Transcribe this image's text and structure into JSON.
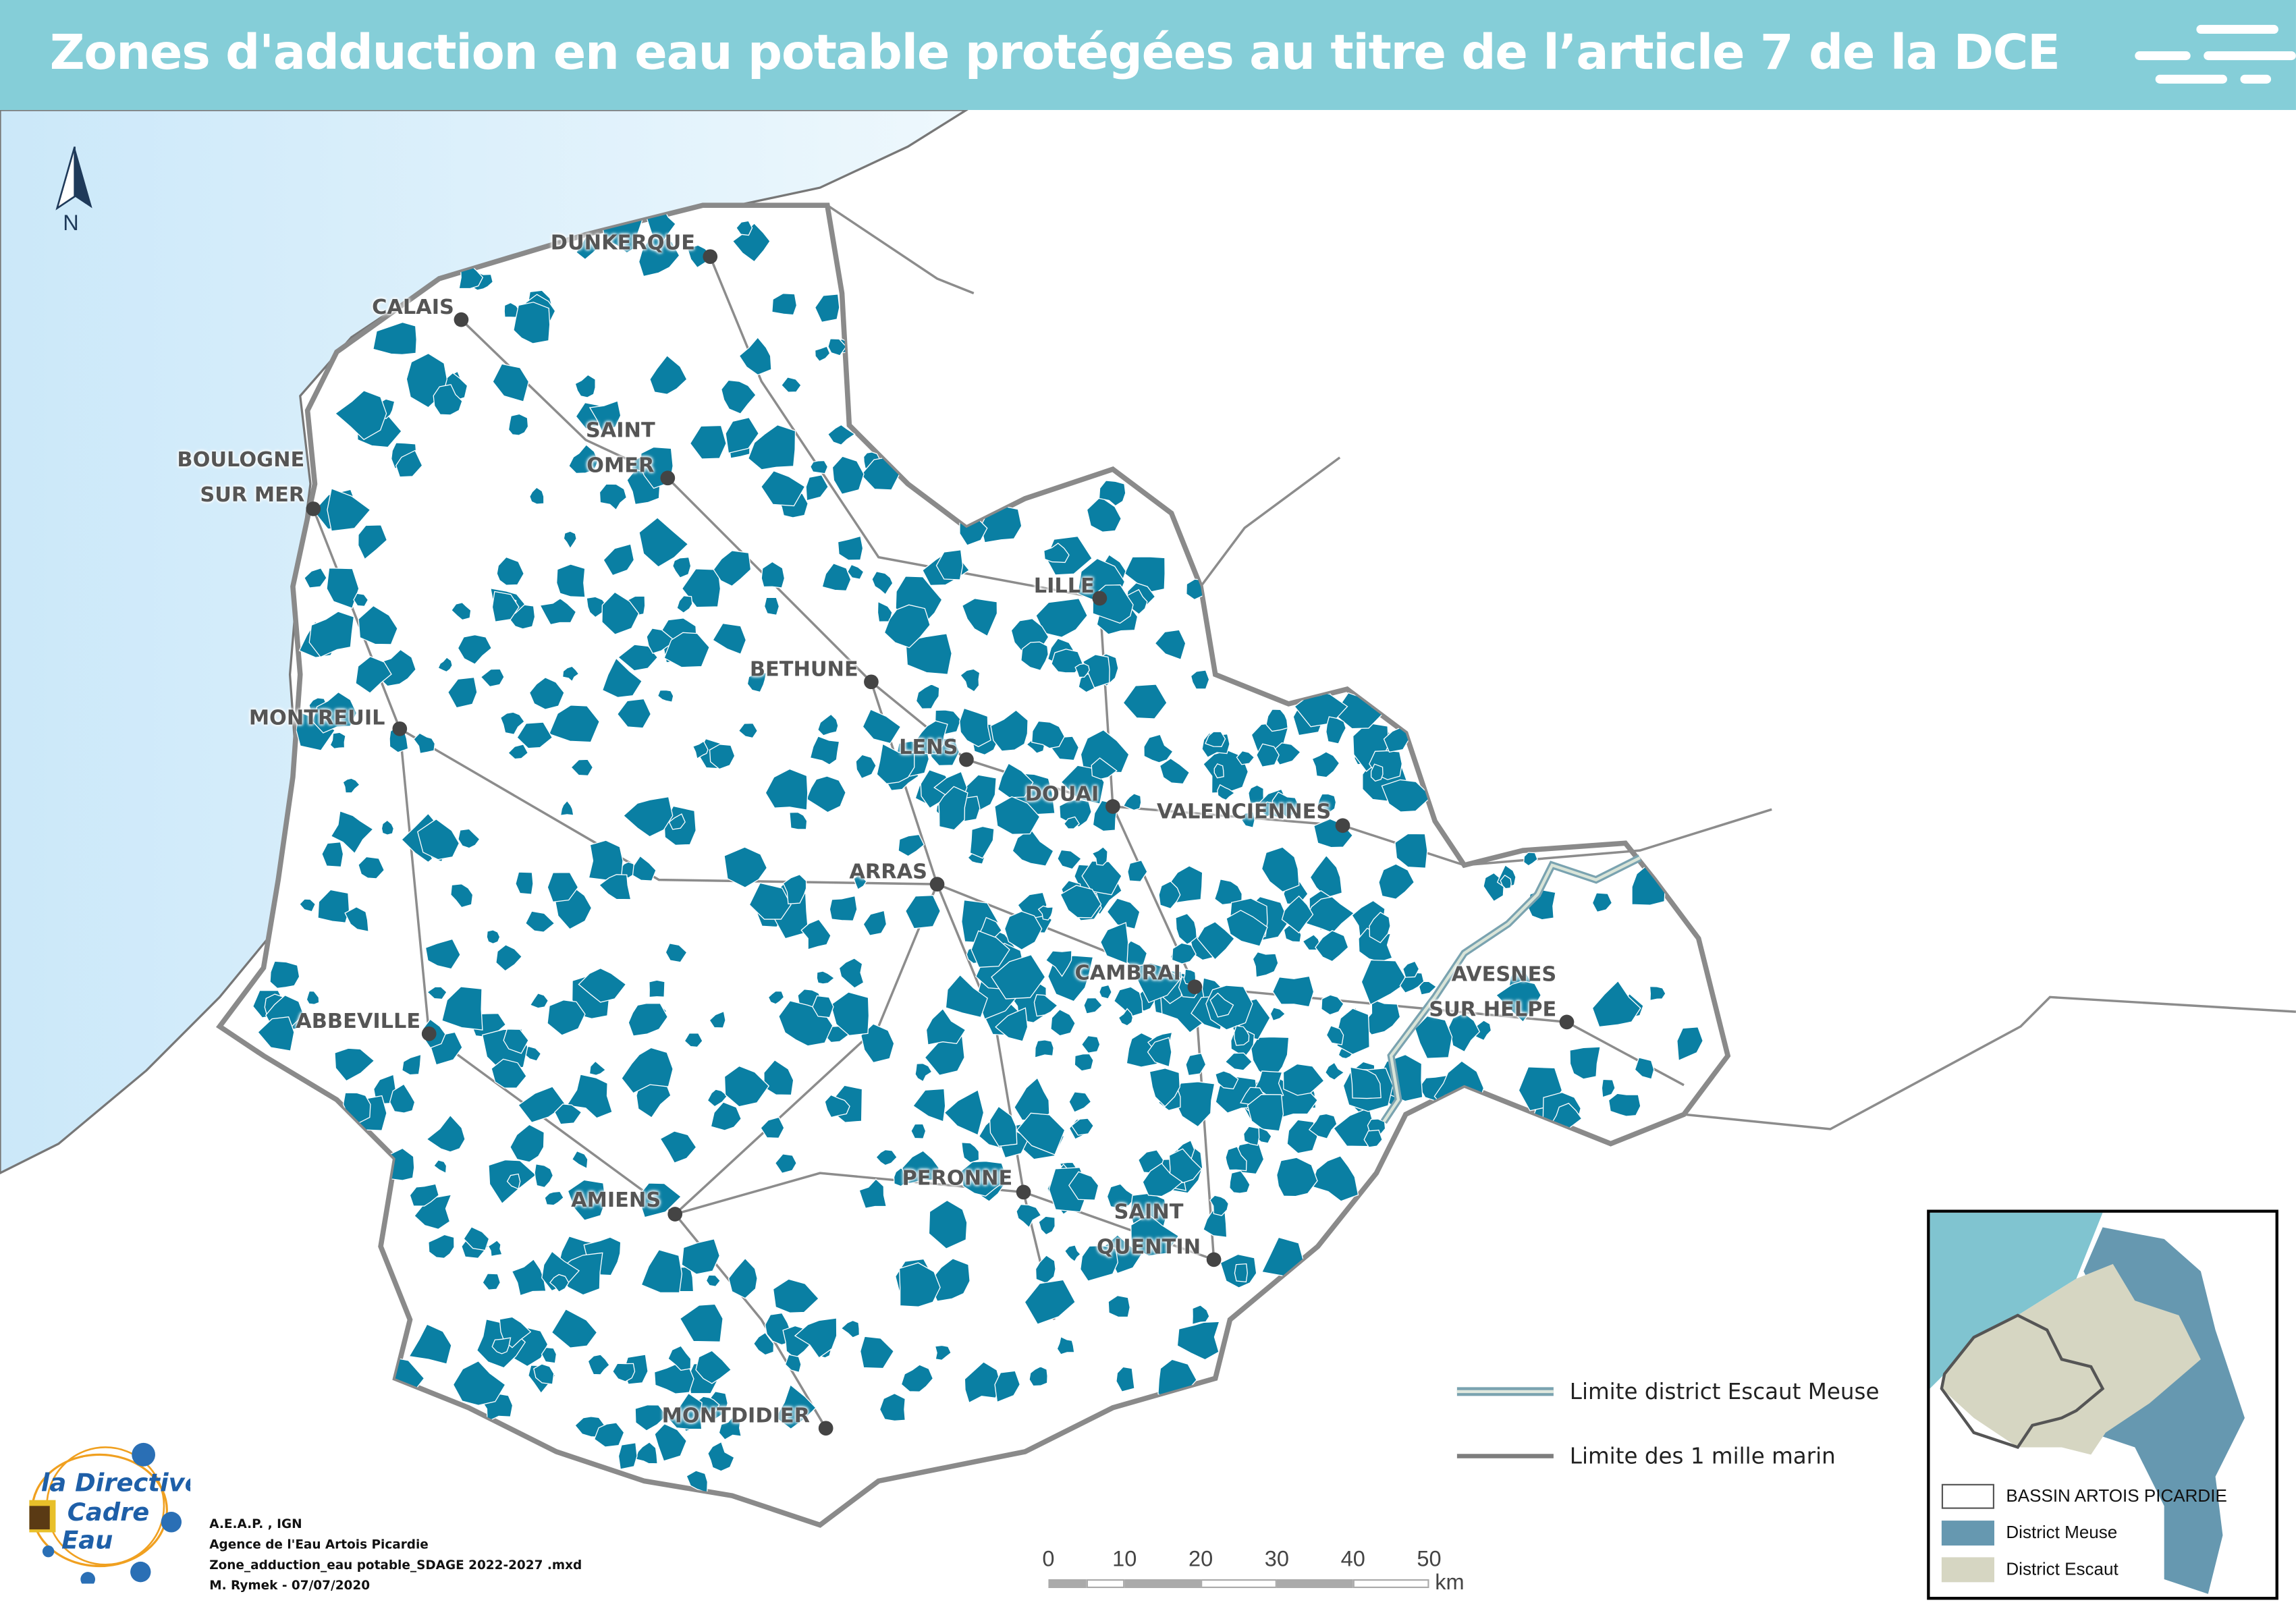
{
  "header": {
    "title": "Zones d'adduction en eau potable protégées au titre de l’article 7 de la DCE",
    "icon": "speed-lines-icon"
  },
  "north_arrow": {
    "label": "N"
  },
  "cities": [
    {
      "id": "dunkerque",
      "lines": [
        "DUNKERQUE"
      ]
    },
    {
      "id": "calais",
      "lines": [
        "CALAIS"
      ]
    },
    {
      "id": "saint-omer",
      "lines": [
        "SAINT",
        "OMER"
      ]
    },
    {
      "id": "boulogne",
      "lines": [
        "BOULOGNE",
        "SUR MER"
      ]
    },
    {
      "id": "lille",
      "lines": [
        "LILLE"
      ]
    },
    {
      "id": "bethune",
      "lines": [
        "BETHUNE"
      ]
    },
    {
      "id": "montreuil",
      "lines": [
        "MONTREUIL"
      ]
    },
    {
      "id": "lens",
      "lines": [
        "LENS"
      ]
    },
    {
      "id": "douai",
      "lines": [
        "DOUAI"
      ]
    },
    {
      "id": "valenciennes",
      "lines": [
        "VALENCIENNES"
      ]
    },
    {
      "id": "arras",
      "lines": [
        "ARRAS"
      ]
    },
    {
      "id": "cambrai",
      "lines": [
        "CAMBRAI"
      ]
    },
    {
      "id": "avesnes",
      "lines": [
        "AVESNES",
        "SUR HELPE"
      ]
    },
    {
      "id": "abbeville",
      "lines": [
        "ABBEVILLE"
      ]
    },
    {
      "id": "peronne",
      "lines": [
        "PERONNE"
      ]
    },
    {
      "id": "amiens",
      "lines": [
        "AMIENS"
      ]
    },
    {
      "id": "saint-quentin",
      "lines": [
        "SAINT",
        "QUENTIN"
      ]
    },
    {
      "id": "montdidier",
      "lines": [
        "MONTDIDIER"
      ]
    }
  ],
  "legend": {
    "district_limit": "Limite district Escaut Meuse",
    "mile_limit": "Limite des 1 mille marin"
  },
  "scale_bar": {
    "ticks": [
      "0",
      "10",
      "20",
      "30",
      "40",
      "50"
    ],
    "unit": "km"
  },
  "credits": [
    "A.E.A.P. , IGN",
    "Agence de l'Eau Artois Picardie",
    "Zone_adduction_eau potable_SDAGE 2022-2027 .mxd",
    "M. Rymek  - 07/07/2020"
  ],
  "logo": {
    "text": "la Directive Cadre Eau"
  },
  "inset": {
    "legend": [
      {
        "label": "BASSIN ARTOIS PICARDIE",
        "color": "#ffffff"
      },
      {
        "label": "District Meuse",
        "color": "#6698b0"
      },
      {
        "label": "District Escaut",
        "color": "#d6d6c2"
      }
    ],
    "sea_color": "#80c4d0"
  },
  "colors": {
    "zones": "#0a7fa3",
    "header": "#85ced8",
    "sea": "#d4ecf9",
    "boundary": "#8a8a8a"
  }
}
